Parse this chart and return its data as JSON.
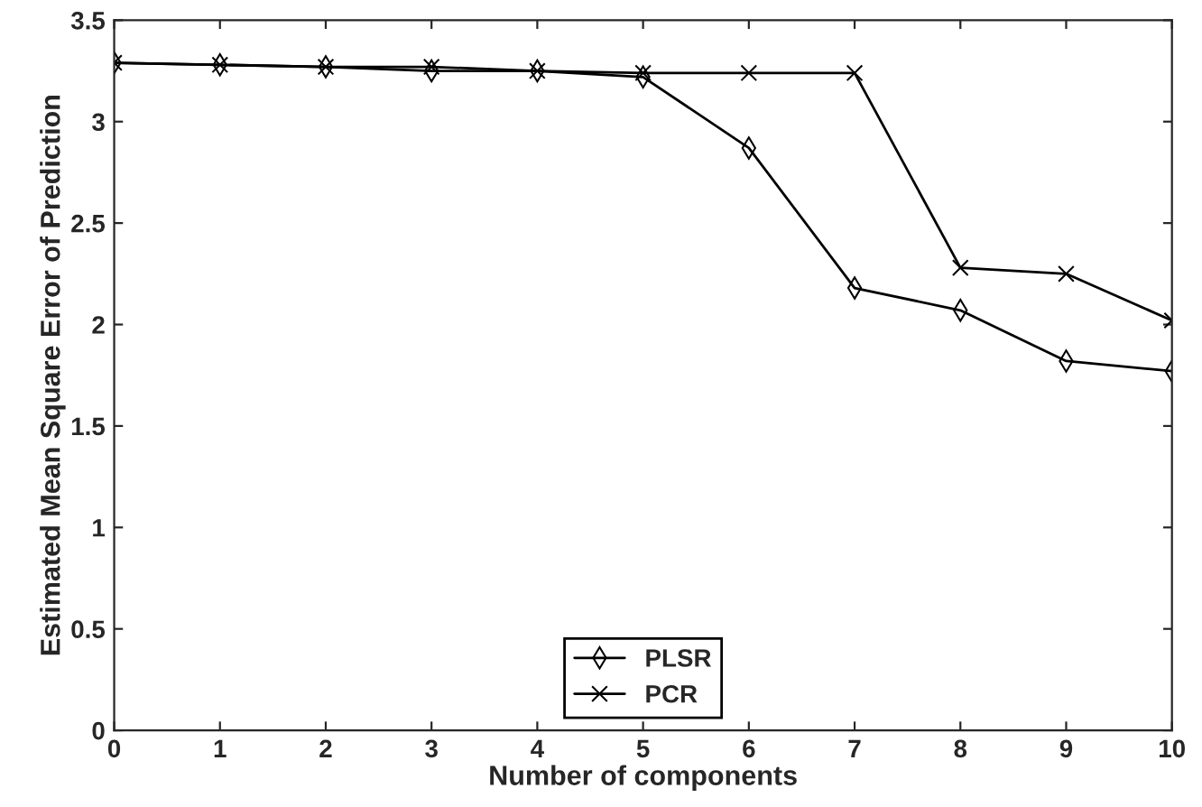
{
  "chart_data": {
    "type": "line",
    "xlabel": "Number of components",
    "ylabel": "Estimated Mean Square Error of Prediction",
    "x": [
      0,
      1,
      2,
      3,
      4,
      5,
      6,
      7,
      8,
      9,
      10
    ],
    "series": [
      {
        "name": "PLSR",
        "color": "#000000",
        "marker": "diamond",
        "values": [
          3.29,
          3.28,
          3.27,
          3.25,
          3.25,
          3.22,
          2.87,
          2.18,
          2.07,
          1.82,
          1.77
        ]
      },
      {
        "name": "PCR",
        "color": "#000000",
        "marker": "cross",
        "values": [
          3.29,
          3.28,
          3.27,
          3.27,
          3.25,
          3.24,
          3.24,
          3.24,
          2.28,
          2.25,
          2.02
        ]
      }
    ],
    "xlim": [
      0,
      10
    ],
    "xticks": [
      0,
      1,
      2,
      3,
      4,
      5,
      6,
      7,
      8,
      9,
      10
    ],
    "ylim": [
      0,
      3.5
    ],
    "yticks": [
      0,
      0.5,
      1,
      1.5,
      2,
      2.5,
      3,
      3.5
    ],
    "grid": false,
    "legend": "bottom",
    "line_style": "solid"
  }
}
